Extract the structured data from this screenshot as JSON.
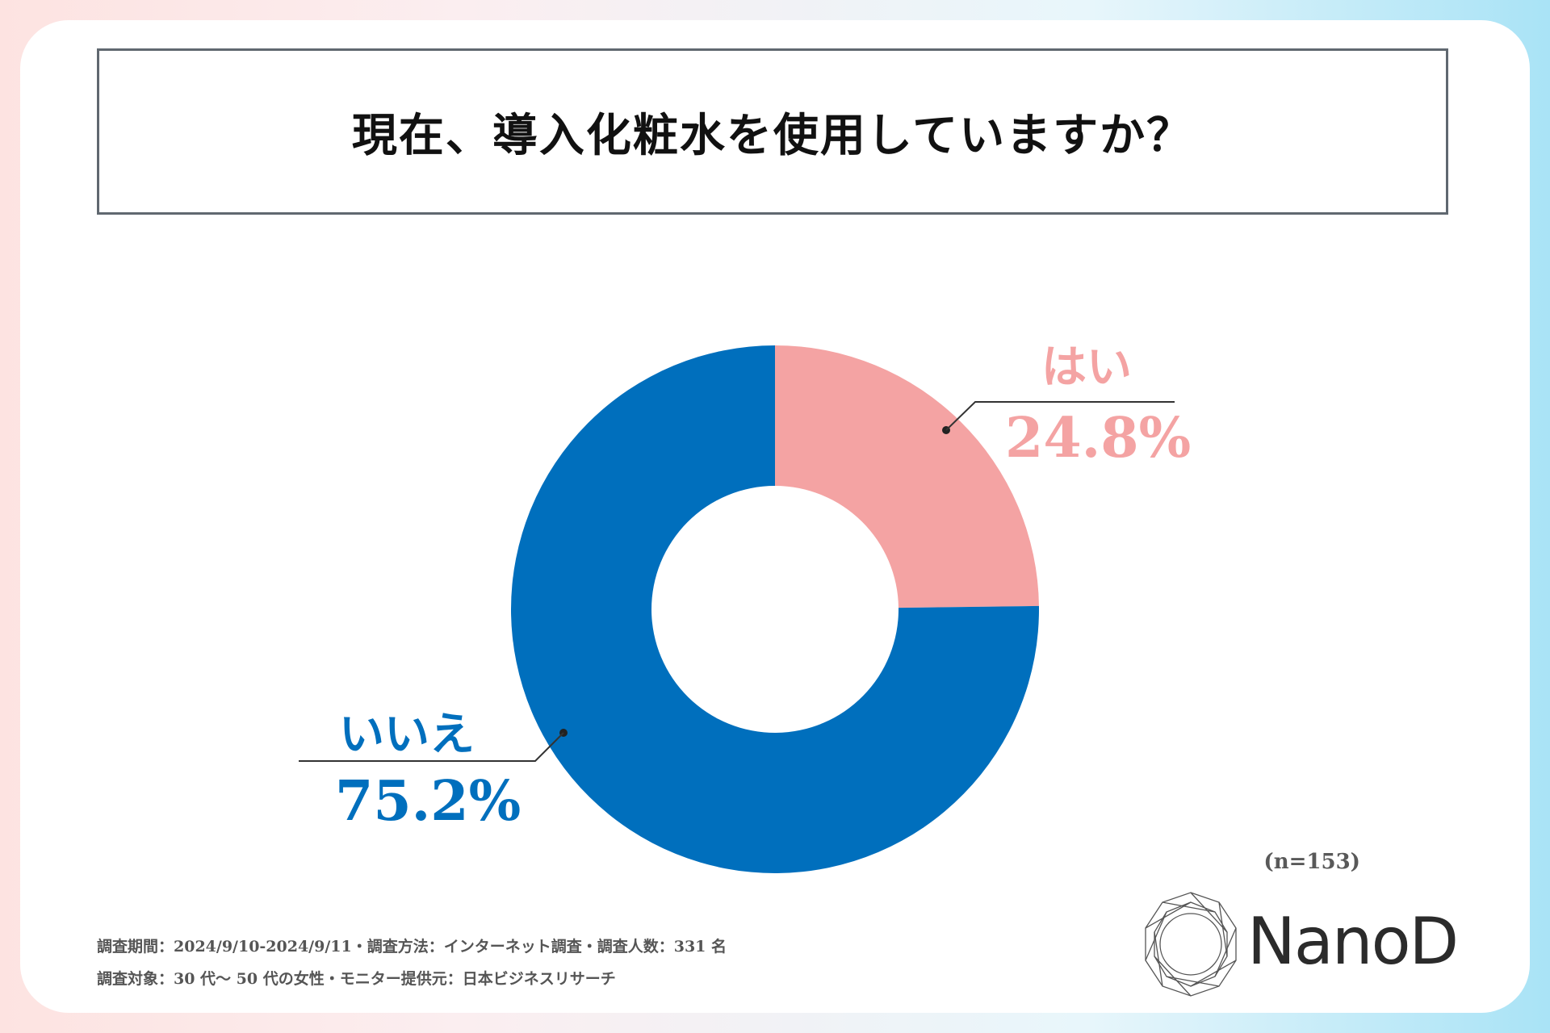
{
  "title": "現在、導入化粧水を使用していますか？",
  "sample_size": "(n=153)",
  "footnotes": [
    "調査期間：2024/9/10-2024/9/11・調査方法：インターネット調査・調査人数：331 名",
    "調査対象：30 代～ 50 代の女性・モニター提供元：日本ビジネスリサーチ"
  ],
  "logo": {
    "text": "NanoD"
  },
  "colors": {
    "yes": "#f4a3a3",
    "no": "#006fbd",
    "leader": "#333333"
  },
  "chart_data": {
    "type": "pie",
    "title": "現在、導入化粧水を使用していますか？",
    "donut": true,
    "start": "12 o'clock, clockwise",
    "slices": [
      {
        "label": "はい",
        "value": 24.8,
        "display": "24.8%",
        "color": "#f4a3a3"
      },
      {
        "label": "いいえ",
        "value": 75.2,
        "display": "75.2%",
        "color": "#006fbd"
      }
    ]
  }
}
